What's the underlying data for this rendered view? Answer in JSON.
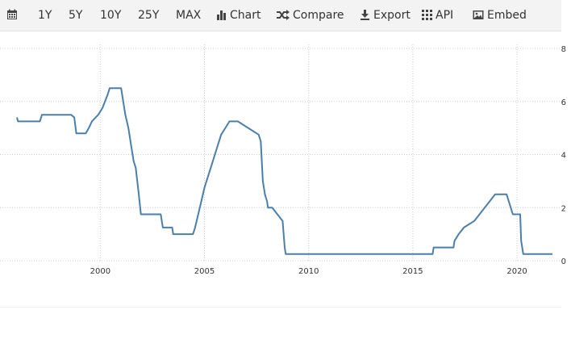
{
  "toolbar": {
    "calendar_icon": "calendar-icon",
    "ranges": [
      "1Y",
      "5Y",
      "10Y",
      "25Y",
      "MAX"
    ],
    "chart_label": "Chart",
    "compare_label": "Compare",
    "export_label": "Export",
    "api_label": "API",
    "embed_label": "Embed"
  },
  "chart_data": {
    "type": "line",
    "title": "",
    "xlabel": "",
    "ylabel": "",
    "xlim": [
      1996.0,
      2021.7
    ],
    "ylim": [
      0,
      8
    ],
    "x_ticks": [
      2000,
      2005,
      2010,
      2015,
      2020
    ],
    "y_ticks": [
      0,
      2,
      4,
      6,
      8
    ],
    "y_axis_position": "right",
    "grid": true,
    "line_color": "#4a7faa",
    "series": [
      {
        "x": [
          1996.0,
          1996.05,
          1997.1,
          1997.2,
          1998.6,
          1998.75,
          1998.85,
          1999.3,
          1999.45,
          1999.6,
          1999.9,
          2000.1,
          2000.35,
          2000.45,
          2001.0,
          2001.1,
          2001.2,
          2001.35,
          2001.5,
          2001.6,
          2001.7,
          2001.85,
          2001.95,
          2002.9,
          2003.0,
          2003.45,
          2003.5,
          2004.45,
          2004.55,
          2004.7,
          2004.85,
          2005.0,
          2005.2,
          2005.4,
          2005.6,
          2005.8,
          2006.0,
          2006.2,
          2006.45,
          2006.6,
          2007.6,
          2007.7,
          2007.8,
          2007.9,
          2008.0,
          2008.05,
          2008.15,
          2008.25,
          2008.75,
          2008.8,
          2008.85,
          2008.9,
          2009.0,
          2015.95,
          2016.0,
          2016.95,
          2017.0,
          2017.2,
          2017.45,
          2017.95,
          2018.2,
          2018.45,
          2018.7,
          2018.95,
          2019.5,
          2019.6,
          2019.7,
          2019.8,
          2020.15,
          2020.2,
          2020.3,
          2021.7
        ],
        "y": [
          5.4,
          5.25,
          5.25,
          5.5,
          5.5,
          5.4,
          4.8,
          4.8,
          5.0,
          5.25,
          5.5,
          5.75,
          6.25,
          6.5,
          6.5,
          6.0,
          5.5,
          5.0,
          4.25,
          3.75,
          3.5,
          2.5,
          1.75,
          1.75,
          1.25,
          1.25,
          1.0,
          1.0,
          1.25,
          1.75,
          2.25,
          2.75,
          3.25,
          3.75,
          4.25,
          4.75,
          5.0,
          5.25,
          5.25,
          5.25,
          4.75,
          4.5,
          3.0,
          2.5,
          2.25,
          2.0,
          2.0,
          2.0,
          1.5,
          1.0,
          0.5,
          0.25,
          0.25,
          0.25,
          0.5,
          0.5,
          0.75,
          1.0,
          1.25,
          1.5,
          1.75,
          2.0,
          2.25,
          2.5,
          2.5,
          2.25,
          2.0,
          1.75,
          1.75,
          0.75,
          0.25,
          0.25
        ]
      }
    ]
  }
}
